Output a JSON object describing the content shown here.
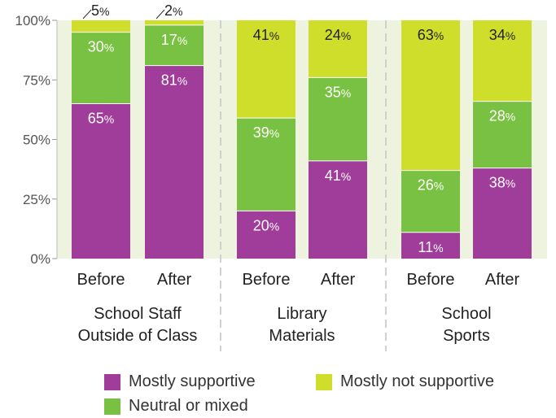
{
  "chart_data": {
    "type": "bar",
    "stacked": true,
    "percent": true,
    "categories": [
      "Before",
      "After",
      "Before",
      "After",
      "Before",
      "After"
    ],
    "groups": [
      {
        "label_lines": [
          "School Staff",
          "Outside of Class"
        ]
      },
      {
        "label_lines": [
          "Library",
          "Materials"
        ]
      },
      {
        "label_lines": [
          "School",
          "Sports"
        ]
      }
    ],
    "series": [
      {
        "name": "Mostly supportive",
        "color": "#a03c99",
        "values": [
          65,
          81,
          20,
          41,
          11,
          38
        ]
      },
      {
        "name": "Neutral or mixed",
        "color": "#79c142",
        "values": [
          30,
          17,
          39,
          35,
          26,
          28
        ]
      },
      {
        "name": "Mostly not supportive",
        "color": "#cfdd2b",
        "values": [
          5,
          2,
          41,
          24,
          63,
          34
        ]
      }
    ],
    "data_labels": [
      [
        "65",
        "81",
        "20",
        "41",
        "11",
        "38"
      ],
      [
        "30",
        "17",
        "39",
        "35",
        "26",
        "28"
      ],
      [
        "5",
        "2",
        "41",
        "24",
        "63",
        "34"
      ]
    ],
    "yticks": [
      "0%",
      "25%",
      "50%",
      "75%",
      "100%"
    ],
    "ylim": [
      0,
      100
    ],
    "grid": false,
    "legend_position": "bottom"
  },
  "legend": {
    "items": [
      {
        "label": "Mostly supportive",
        "color": "#a03c99"
      },
      {
        "label": "Mostly not supportive",
        "color": "#cfdd2b"
      },
      {
        "label": "Neutral or mixed",
        "color": "#79c142"
      }
    ]
  }
}
